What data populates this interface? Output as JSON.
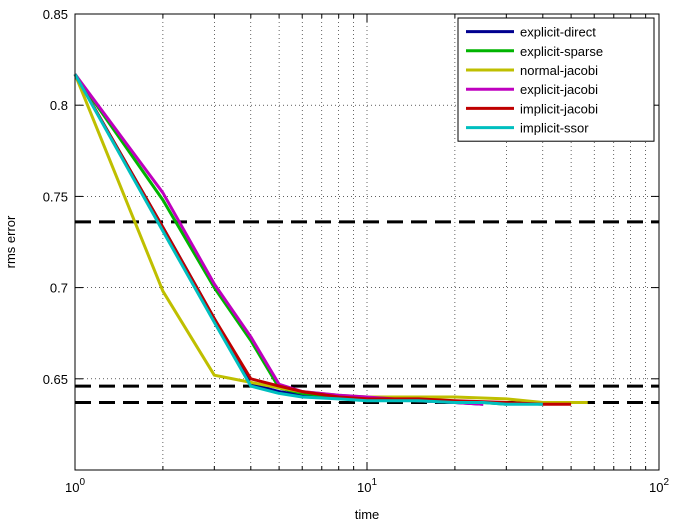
{
  "chart_data": {
    "type": "line",
    "title": "",
    "xlabel": "time",
    "ylabel": "rms error",
    "xscale": "log",
    "xlim": [
      1,
      100
    ],
    "ylim": [
      0.6,
      0.85
    ],
    "grid": true,
    "legend_position": "top-right",
    "x_ticks": [
      {
        "value": 1,
        "base": "10",
        "exp": "0"
      },
      {
        "value": 10,
        "base": "10",
        "exp": "1"
      },
      {
        "value": 100,
        "base": "10",
        "exp": "2"
      }
    ],
    "y_ticks": [
      {
        "value": 0.65,
        "label": "0.65"
      },
      {
        "value": 0.7,
        "label": "0.7"
      },
      {
        "value": 0.75,
        "label": "0.75"
      },
      {
        "value": 0.8,
        "label": "0.8"
      },
      {
        "value": 0.85,
        "label": "0.85"
      }
    ],
    "reference_lines": [
      {
        "y": 0.736,
        "style": "dashed",
        "color": "#000000"
      },
      {
        "y": 0.646,
        "style": "dashed",
        "color": "#000000"
      },
      {
        "y": 0.637,
        "style": "dashed",
        "color": "#000000"
      }
    ],
    "series": [
      {
        "name": "explicit-direct",
        "color": "#00008f",
        "x": [
          1,
          2,
          3,
          4,
          5,
          6,
          8,
          10,
          15,
          20,
          25
        ],
        "y": [
          0.817,
          0.733,
          0.683,
          0.647,
          0.643,
          0.641,
          0.64,
          0.639,
          0.638,
          0.637,
          0.636
        ]
      },
      {
        "name": "explicit-sparse",
        "color": "#00b400",
        "x": [
          1,
          2,
          3,
          4,
          5,
          6,
          8,
          10,
          15,
          20,
          25,
          30
        ],
        "y": [
          0.817,
          0.748,
          0.7,
          0.671,
          0.645,
          0.642,
          0.64,
          0.639,
          0.638,
          0.637,
          0.637,
          0.636
        ]
      },
      {
        "name": "normal-jacobi",
        "color": "#bfbf00",
        "x": [
          1,
          2,
          3,
          4,
          5,
          6,
          8,
          10,
          15,
          20,
          30,
          40,
          57
        ],
        "y": [
          0.817,
          0.698,
          0.652,
          0.648,
          0.645,
          0.643,
          0.641,
          0.64,
          0.64,
          0.64,
          0.639,
          0.637,
          0.637
        ]
      },
      {
        "name": "explicit-jacobi",
        "color": "#bf00bf",
        "x": [
          1,
          2,
          3,
          4,
          5,
          6,
          8,
          10,
          15,
          20,
          25
        ],
        "y": [
          0.817,
          0.752,
          0.702,
          0.673,
          0.647,
          0.643,
          0.641,
          0.64,
          0.638,
          0.637,
          0.636
        ]
      },
      {
        "name": "implicit-jacobi",
        "color": "#bf0000",
        "x": [
          1,
          2,
          3,
          4,
          5,
          6,
          8,
          10,
          15,
          20,
          30,
          40,
          50
        ],
        "y": [
          0.817,
          0.733,
          0.683,
          0.65,
          0.646,
          0.643,
          0.64,
          0.639,
          0.639,
          0.638,
          0.637,
          0.636,
          0.636
        ]
      },
      {
        "name": "implicit-ssor",
        "color": "#00bfbf",
        "x": [
          1,
          2,
          3,
          4,
          5,
          6,
          8,
          10,
          15,
          20,
          25,
          30,
          40
        ],
        "y": [
          0.817,
          0.731,
          0.681,
          0.646,
          0.642,
          0.64,
          0.639,
          0.638,
          0.638,
          0.637,
          0.637,
          0.636,
          0.636
        ]
      }
    ]
  }
}
